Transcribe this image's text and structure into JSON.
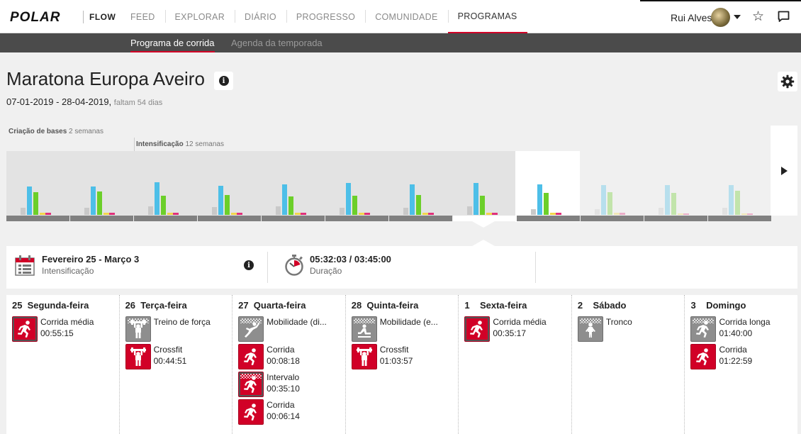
{
  "nav": {
    "logo": "POLAR",
    "product": "FLOW",
    "items": [
      "FEED",
      "EXPLORAR",
      "DIÁRIO",
      "PROGRESSO",
      "COMUNIDADE",
      "PROGRAMAS"
    ],
    "active": "PROGRAMAS",
    "user": "Rui Alves"
  },
  "subnav": {
    "active": "Programa de corrida",
    "inactive": "Agenda da temporada"
  },
  "program": {
    "title": "Maratona Europa Aveiro",
    "info_glyph": "i",
    "date_range": "07-01-2019 - 28-04-2019,",
    "remaining": "faltam 54 dias"
  },
  "phases": [
    {
      "name": "Criação de bases",
      "weeks": "2 semanas"
    },
    {
      "name": "Intensificação",
      "weeks": "12 semanas"
    }
  ],
  "colors": {
    "accent": "#d10027",
    "bar_gray": "#c9c9c9",
    "bar_blue": "#4dbfe8",
    "bar_green": "#6ccf2a",
    "bar_yellow": "#f2d64b",
    "bar_pink": "#e0307a"
  },
  "chart_weeks": [
    {
      "state": "past",
      "values": [
        10,
        40,
        32,
        3,
        3
      ]
    },
    {
      "state": "past",
      "values": [
        10,
        40,
        33,
        3,
        3
      ]
    },
    {
      "state": "past",
      "values": [
        12,
        46,
        27,
        3,
        3
      ]
    },
    {
      "state": "past",
      "values": [
        11,
        41,
        28,
        3,
        3
      ]
    },
    {
      "state": "past",
      "values": [
        12,
        43,
        26,
        3,
        3
      ]
    },
    {
      "state": "past",
      "values": [
        10,
        45,
        27,
        3,
        3
      ]
    },
    {
      "state": "past",
      "values": [
        10,
        43,
        28,
        3,
        3
      ]
    },
    {
      "state": "past",
      "values": [
        12,
        45,
        27,
        3,
        3
      ]
    },
    {
      "state": "current",
      "values": [
        8,
        43,
        31,
        3,
        3
      ]
    },
    {
      "state": "future",
      "values": [
        8,
        42,
        32,
        3,
        3
      ]
    },
    {
      "state": "future",
      "values": [
        10,
        42,
        31,
        2,
        2
      ]
    },
    {
      "state": "future",
      "values": [
        10,
        42,
        34,
        2,
        2
      ]
    }
  ],
  "summary": {
    "period": "Fevereiro 25 - Março 3",
    "phase": "Intensificação",
    "duration": "05:32:03 / 03:45:00",
    "duration_label": "Duração"
  },
  "days": [
    {
      "num": "25",
      "name": "Segunda-feira",
      "sessions": [
        {
          "name": "Corrida média",
          "time": "00:55:15",
          "kind": "run",
          "color": "red",
          "flag": false,
          "done": true
        }
      ]
    },
    {
      "num": "26",
      "name": "Terça-feira",
      "sessions": [
        {
          "name": "Treino de força",
          "time": "",
          "kind": "strength",
          "color": "gray",
          "flag": true,
          "done": false
        },
        {
          "name": "Crossfit",
          "time": "00:44:51",
          "kind": "strength",
          "color": "red",
          "flag": false,
          "done": false
        }
      ]
    },
    {
      "num": "27",
      "name": "Quarta-feira",
      "sessions": [
        {
          "name": "Mobilidade (di...",
          "time": "",
          "kind": "mobility",
          "color": "gray",
          "flag": true,
          "done": false
        },
        {
          "name": "Corrida",
          "time": "00:08:18",
          "kind": "run",
          "color": "red",
          "flag": false,
          "done": false
        },
        {
          "name": "Intervalo",
          "time": "00:35:10",
          "kind": "run",
          "color": "red",
          "flag": true,
          "done": true
        },
        {
          "name": "Corrida",
          "time": "00:06:14",
          "kind": "run",
          "color": "red",
          "flag": false,
          "done": false
        }
      ]
    },
    {
      "num": "28",
      "name": "Quinta-feira",
      "sessions": [
        {
          "name": "Mobilidade (e...",
          "time": "",
          "kind": "mobility2",
          "color": "gray",
          "flag": true,
          "done": false
        },
        {
          "name": "Crossfit",
          "time": "01:03:57",
          "kind": "strength",
          "color": "red",
          "flag": false,
          "done": false
        }
      ]
    },
    {
      "num": "1",
      "name": "Sexta-feira",
      "sessions": [
        {
          "name": "Corrida média",
          "time": "00:35:17",
          "kind": "run",
          "color": "red",
          "flag": false,
          "done": true
        }
      ]
    },
    {
      "num": "2",
      "name": "Sábado",
      "sessions": [
        {
          "name": "Tronco",
          "time": "",
          "kind": "core",
          "color": "gray",
          "flag": true,
          "done": false
        }
      ]
    },
    {
      "num": "3",
      "name": "Domingo",
      "sessions": [
        {
          "name": "Corrida longa",
          "time": "01:40:00",
          "kind": "run",
          "color": "gray",
          "flag": true,
          "done": false
        },
        {
          "name": "Corrida",
          "time": "01:22:59",
          "kind": "run",
          "color": "red",
          "flag": false,
          "done": false
        }
      ]
    }
  ]
}
